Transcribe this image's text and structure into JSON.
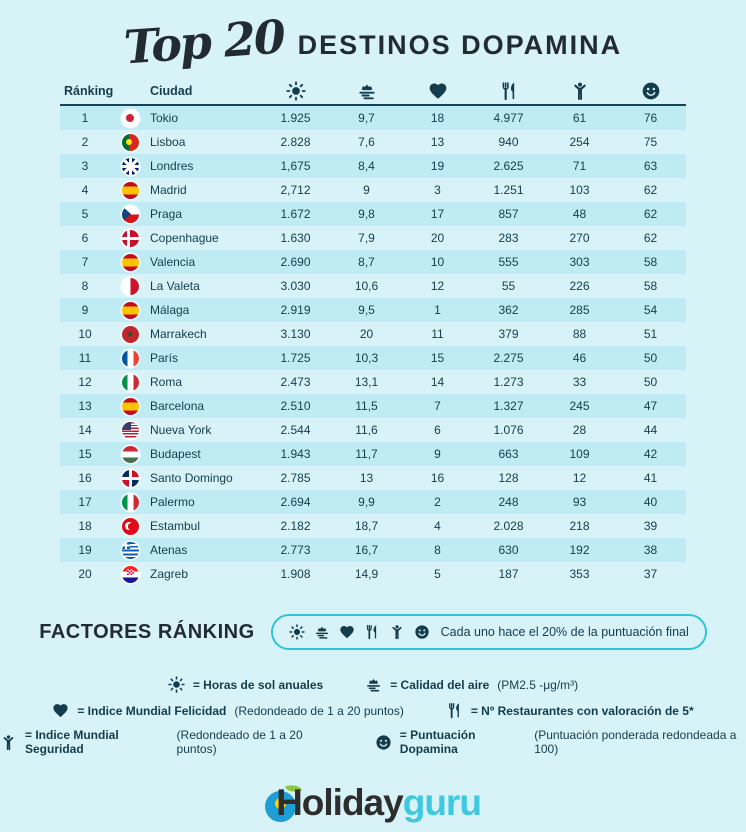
{
  "title": {
    "script": "Top 20",
    "main": "DESTINOS DOPAMINA"
  },
  "colors": {
    "background": "#d8f3f7",
    "row_stripe": "#bfecf4",
    "ink": "#133c4d",
    "accent_border": "#2ec5d8",
    "title_ink": "#222b31",
    "logo_dark": "#2d2d2d",
    "logo_cyan": "#3fc9e0"
  },
  "table": {
    "headers": {
      "ranking": "Ránking",
      "city": "Ciudad"
    },
    "metric_icons": [
      "sun-icon",
      "air-quality-icon",
      "heart-icon",
      "restaurants-icon",
      "security-icon",
      "dopamine-icon"
    ],
    "rows": [
      {
        "rank": "1",
        "city": "Tokio",
        "flag": "jp",
        "sun": "1.925",
        "air": "9,7",
        "happiness": "18",
        "restaurants": "4.977",
        "security": "61",
        "dopamine": "76"
      },
      {
        "rank": "2",
        "city": "Lisboa",
        "flag": "pt",
        "sun": "2.828",
        "air": "7,6",
        "happiness": "13",
        "restaurants": "940",
        "security": "254",
        "dopamine": "75"
      },
      {
        "rank": "3",
        "city": "Londres",
        "flag": "gb",
        "sun": "1,675",
        "air": "8,4",
        "happiness": "19",
        "restaurants": "2.625",
        "security": "71",
        "dopamine": "63"
      },
      {
        "rank": "4",
        "city": "Madrid",
        "flag": "es",
        "sun": "2,712",
        "air": "9",
        "happiness": "3",
        "restaurants": "1.251",
        "security": "103",
        "dopamine": "62"
      },
      {
        "rank": "5",
        "city": "Praga",
        "flag": "cz",
        "sun": "1.672",
        "air": "9,8",
        "happiness": "17",
        "restaurants": "857",
        "security": "48",
        "dopamine": "62"
      },
      {
        "rank": "6",
        "city": "Copenhague",
        "flag": "dk",
        "sun": "1.630",
        "air": "7,9",
        "happiness": "20",
        "restaurants": "283",
        "security": "270",
        "dopamine": "62"
      },
      {
        "rank": "7",
        "city": "Valencia",
        "flag": "es",
        "sun": "2.690",
        "air": "8,7",
        "happiness": "10",
        "restaurants": "555",
        "security": "303",
        "dopamine": "58"
      },
      {
        "rank": "8",
        "city": "La Valeta",
        "flag": "mt",
        "sun": "3.030",
        "air": "10,6",
        "happiness": "12",
        "restaurants": "55",
        "security": "226",
        "dopamine": "58"
      },
      {
        "rank": "9",
        "city": "Málaga",
        "flag": "es",
        "sun": "2.919",
        "air": "9,5",
        "happiness": "1",
        "restaurants": "362",
        "security": "285",
        "dopamine": "54"
      },
      {
        "rank": "10",
        "city": "Marrakech",
        "flag": "ma",
        "sun": "3.130",
        "air": "20",
        "happiness": "11",
        "restaurants": "379",
        "security": "88",
        "dopamine": "51"
      },
      {
        "rank": "11",
        "city": "París",
        "flag": "fr",
        "sun": "1.725",
        "air": "10,3",
        "happiness": "15",
        "restaurants": "2.275",
        "security": "46",
        "dopamine": "50"
      },
      {
        "rank": "12",
        "city": "Roma",
        "flag": "it",
        "sun": "2.473",
        "air": "13,1",
        "happiness": "14",
        "restaurants": "1.273",
        "security": "33",
        "dopamine": "50"
      },
      {
        "rank": "13",
        "city": "Barcelona",
        "flag": "es",
        "sun": "2.510",
        "air": "11,5",
        "happiness": "7",
        "restaurants": "1.327",
        "security": "245",
        "dopamine": "47"
      },
      {
        "rank": "14",
        "city": "Nueva York",
        "flag": "us",
        "sun": "2.544",
        "air": "11,6",
        "happiness": "6",
        "restaurants": "1.076",
        "security": "28",
        "dopamine": "44"
      },
      {
        "rank": "15",
        "city": "Budapest",
        "flag": "hu",
        "sun": "1.943",
        "air": "11,7",
        "happiness": "9",
        "restaurants": "663",
        "security": "109",
        "dopamine": "42"
      },
      {
        "rank": "16",
        "city": "Santo Domingo",
        "flag": "do",
        "sun": "2.785",
        "air": "13",
        "happiness": "16",
        "restaurants": "128",
        "security": "12",
        "dopamine": "41"
      },
      {
        "rank": "17",
        "city": "Palermo",
        "flag": "it",
        "sun": "2.694",
        "air": "9,9",
        "happiness": "2",
        "restaurants": "248",
        "security": "93",
        "dopamine": "40"
      },
      {
        "rank": "18",
        "city": "Estambul",
        "flag": "tr",
        "sun": "2.182",
        "air": "18,7",
        "happiness": "4",
        "restaurants": "2.028",
        "security": "218",
        "dopamine": "39"
      },
      {
        "rank": "19",
        "city": "Atenas",
        "flag": "gr",
        "sun": "2.773",
        "air": "16,7",
        "happiness": "8",
        "restaurants": "630",
        "security": "192",
        "dopamine": "38"
      },
      {
        "rank": "20",
        "city": "Zagreb",
        "flag": "hr",
        "sun": "1.908",
        "air": "14,9",
        "happiness": "5",
        "restaurants": "187",
        "security": "353",
        "dopamine": "37"
      }
    ]
  },
  "factors": {
    "heading": "FACTORES RÁNKING",
    "icons": [
      "sun-icon",
      "air-quality-icon",
      "heart-icon",
      "restaurants-icon",
      "security-icon",
      "dopamine-icon"
    ],
    "note": "Cada uno hace el 20% de la puntuación final"
  },
  "legend": {
    "items": [
      {
        "icon": "sun-icon",
        "label": "= Horas de sol anuales",
        "detail": ""
      },
      {
        "icon": "air-quality-icon",
        "label": "= Calidad del aire",
        "detail": "(PM2.5 -μg/m³)"
      },
      {
        "icon": "heart-icon",
        "label": "= Indice Mundial Felicidad",
        "detail": "(Redondeado de 1 a 20 puntos)"
      },
      {
        "icon": "restaurants-icon",
        "label": "= Nº Restaurantes con valoración de 5*",
        "detail": ""
      },
      {
        "icon": "security-icon",
        "label": "= Indice Mundial Seguridad",
        "detail": "(Redondeado de 1 a 20 puntos)"
      },
      {
        "icon": "dopamine-icon",
        "label": "= Puntuación Dopamina",
        "detail": "(Puntuación ponderada redondeada a 100)"
      }
    ]
  },
  "logo": {
    "part1": "Holiday",
    "part2": "guru"
  },
  "chart_data": {
    "type": "table",
    "title": "Top 20 Destinos Dopamina",
    "columns": [
      "Ránking",
      "Ciudad",
      "Horas de sol anuales",
      "Calidad del aire (PM2.5 μg/m³)",
      "Índice Mundial Felicidad (1-20)",
      "Nº Restaurantes con valoración de 5*",
      "Índice Mundial Seguridad",
      "Puntuación Dopamina (a 100)"
    ],
    "rows": [
      [
        1,
        "Tokio",
        1925,
        9.7,
        18,
        4977,
        61,
        76
      ],
      [
        2,
        "Lisboa",
        2828,
        7.6,
        13,
        940,
        254,
        75
      ],
      [
        3,
        "Londres",
        1675,
        8.4,
        19,
        2625,
        71,
        63
      ],
      [
        4,
        "Madrid",
        2712,
        9,
        3,
        1251,
        103,
        62
      ],
      [
        5,
        "Praga",
        1672,
        9.8,
        17,
        857,
        48,
        62
      ],
      [
        6,
        "Copenhague",
        1630,
        7.9,
        20,
        283,
        270,
        62
      ],
      [
        7,
        "Valencia",
        2690,
        8.7,
        10,
        555,
        303,
        58
      ],
      [
        8,
        "La Valeta",
        3030,
        10.6,
        12,
        55,
        226,
        58
      ],
      [
        9,
        "Málaga",
        2919,
        9.5,
        1,
        362,
        285,
        54
      ],
      [
        10,
        "Marrakech",
        3130,
        20,
        11,
        379,
        88,
        51
      ],
      [
        11,
        "París",
        1725,
        10.3,
        15,
        2275,
        46,
        50
      ],
      [
        12,
        "Roma",
        2473,
        13.1,
        14,
        1273,
        33,
        50
      ],
      [
        13,
        "Barcelona",
        2510,
        11.5,
        7,
        1327,
        245,
        47
      ],
      [
        14,
        "Nueva York",
        2544,
        11.6,
        6,
        1076,
        28,
        44
      ],
      [
        15,
        "Budapest",
        1943,
        11.7,
        9,
        663,
        109,
        42
      ],
      [
        16,
        "Santo Domingo",
        2785,
        13,
        16,
        128,
        12,
        41
      ],
      [
        17,
        "Palermo",
        2694,
        9.9,
        2,
        248,
        93,
        40
      ],
      [
        18,
        "Estambul",
        2182,
        18.7,
        4,
        2028,
        218,
        39
      ],
      [
        19,
        "Atenas",
        2773,
        16.7,
        8,
        630,
        192,
        38
      ],
      [
        20,
        "Zagreb",
        1908,
        14.9,
        5,
        187,
        353,
        37
      ]
    ]
  }
}
